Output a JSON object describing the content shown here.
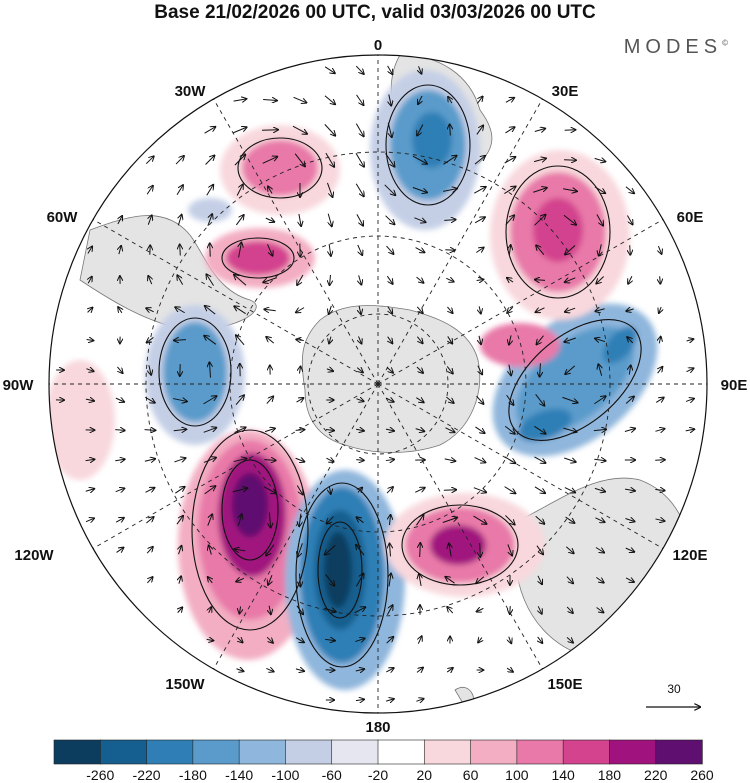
{
  "header": {
    "title": "Base 21/02/2026 00 UTC, valid 03/03/2026 00 UTC",
    "brand": "MODES",
    "brand_mark": "©"
  },
  "map": {
    "projection": "south-polar-stereographic",
    "longitude_labels": {
      "top": "0",
      "top_right": "30E",
      "right_upper": "60E",
      "right": "90E",
      "right_lower": "120E",
      "bottom_right": "150E",
      "bottom": "180",
      "bottom_left": "150W",
      "left_lower": "120W",
      "left": "90W",
      "left_upper": "60W",
      "top_left": "30W"
    },
    "reference_vector": "30"
  },
  "colorbar": {
    "labels": [
      "-260",
      "-220",
      "-180",
      "-140",
      "-100",
      "-60",
      "-20",
      "20",
      "60",
      "100",
      "140",
      "180",
      "220",
      "260"
    ],
    "colors": [
      "#0c3d5e",
      "#145f8f",
      "#2f7fb6",
      "#5a9bcb",
      "#8fb6dc",
      "#c4cfe6",
      "#e6e6f1",
      "#ffffff",
      "#f8d8dd",
      "#f3aec3",
      "#e879a8",
      "#d3438e",
      "#a0127e",
      "#5e0f6f"
    ]
  },
  "colors": {
    "land": "#e2e2e2",
    "coast": "#6b6b6b",
    "grid": "#222222"
  }
}
